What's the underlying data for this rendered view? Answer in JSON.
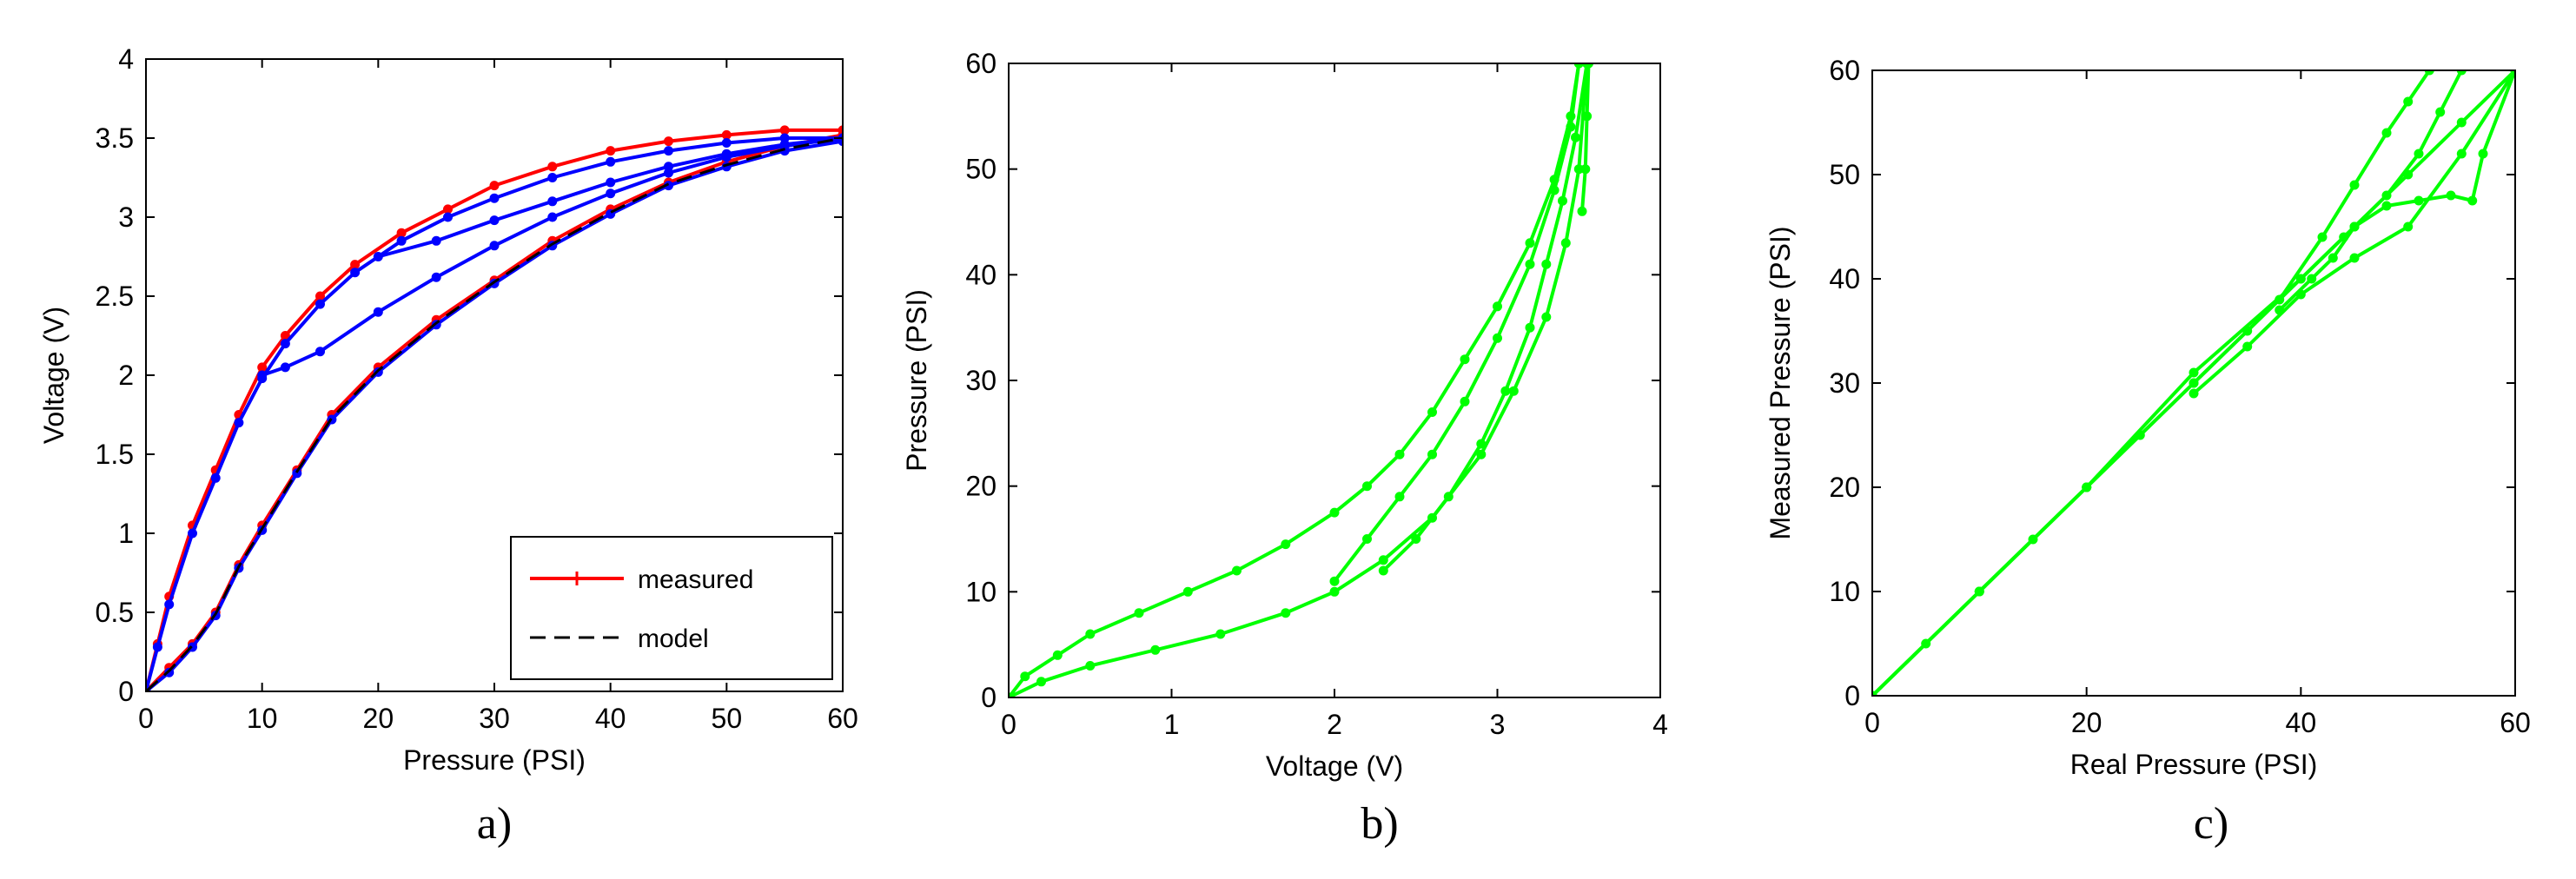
{
  "colors": {
    "measured": "#ff0000",
    "model": "#000000",
    "blue_series": "#0000ff",
    "green_series": "#00ff00"
  },
  "chart_data": [
    {
      "id": "a",
      "caption": "a)",
      "type": "line",
      "xlabel": "Pressure (PSI)",
      "ylabel": "Voltage (V)",
      "xlim": [
        0,
        60
      ],
      "ylim": [
        0,
        4
      ],
      "xticks": [
        0,
        10,
        20,
        30,
        40,
        50,
        60
      ],
      "yticks": [
        0,
        0.5,
        1,
        1.5,
        2,
        2.5,
        3,
        3.5,
        4
      ],
      "xtick_labels": [
        "0",
        "10",
        "20",
        "30",
        "40",
        "50",
        "60"
      ],
      "ytick_labels": [
        "0",
        "0.5",
        "1",
        "1.5",
        "2",
        "2.5",
        "3",
        "3.5",
        "4"
      ],
      "grid": false,
      "legend": {
        "position": "bottom-right",
        "entries": [
          "measured",
          "model"
        ]
      },
      "series": [
        {
          "name": "measured",
          "color": "#ff0000",
          "style": "solid-markers",
          "x": [
            0,
            1,
            2,
            4,
            6,
            8,
            10,
            12,
            15,
            18,
            22,
            26,
            30,
            35,
            40,
            45,
            50,
            55,
            60
          ],
          "y": [
            0,
            0.3,
            0.6,
            1.05,
            1.4,
            1.75,
            2.05,
            2.25,
            2.5,
            2.7,
            2.9,
            3.05,
            3.2,
            3.32,
            3.42,
            3.48,
            3.52,
            3.55,
            3.55
          ]
        },
        {
          "name": "measured",
          "color": "#ff0000",
          "style": "solid-markers",
          "x": [
            0,
            2,
            4,
            6,
            8,
            10,
            13,
            16,
            20,
            25,
            30,
            35,
            40,
            45,
            50,
            55,
            60
          ],
          "y": [
            0,
            0.15,
            0.3,
            0.5,
            0.8,
            1.05,
            1.4,
            1.75,
            2.05,
            2.35,
            2.6,
            2.85,
            3.05,
            3.22,
            3.35,
            3.45,
            3.52
          ]
        },
        {
          "name": "",
          "color": "#0000ff",
          "style": "solid-markers",
          "x": [
            0,
            1,
            2,
            4,
            6,
            8,
            10,
            12,
            15,
            18,
            22,
            26,
            30,
            35,
            40,
            45,
            50,
            55,
            60
          ],
          "y": [
            0,
            0.28,
            0.55,
            1.0,
            1.35,
            1.7,
            1.98,
            2.2,
            2.45,
            2.65,
            2.85,
            3.0,
            3.12,
            3.25,
            3.35,
            3.42,
            3.47,
            3.5,
            3.5
          ]
        },
        {
          "name": "",
          "color": "#0000ff",
          "style": "solid-markers",
          "x": [
            0,
            2,
            4,
            6,
            8,
            10,
            13,
            16,
            20,
            25,
            30,
            35,
            40,
            45,
            50,
            55,
            60
          ],
          "y": [
            0,
            0.12,
            0.28,
            0.48,
            0.78,
            1.02,
            1.38,
            1.72,
            2.02,
            2.32,
            2.58,
            2.82,
            3.02,
            3.2,
            3.32,
            3.42,
            3.48
          ]
        },
        {
          "name": "",
          "color": "#0000ff",
          "style": "solid-markers",
          "x": [
            10,
            12,
            15,
            20,
            25,
            30,
            35,
            40,
            45,
            50,
            55,
            60
          ],
          "y": [
            2.0,
            2.05,
            2.15,
            2.4,
            2.62,
            2.82,
            3.0,
            3.15,
            3.28,
            3.38,
            3.45,
            3.5
          ]
        },
        {
          "name": "",
          "color": "#0000ff",
          "style": "solid-markers",
          "x": [
            20,
            25,
            30,
            35,
            40,
            45,
            50,
            55,
            60
          ],
          "y": [
            2.75,
            2.85,
            2.98,
            3.1,
            3.22,
            3.32,
            3.4,
            3.46,
            3.5
          ]
        },
        {
          "name": "model",
          "color": "#000000",
          "style": "dashed",
          "x": [
            0,
            2,
            4,
            6,
            8,
            10,
            13,
            16,
            20,
            25,
            30,
            35,
            40,
            45,
            50,
            55,
            60
          ],
          "y": [
            0,
            0.13,
            0.29,
            0.49,
            0.79,
            1.03,
            1.39,
            1.73,
            2.03,
            2.33,
            2.59,
            2.83,
            3.03,
            3.21,
            3.33,
            3.43,
            3.5
          ]
        }
      ]
    },
    {
      "id": "b",
      "caption": "b)",
      "type": "line",
      "xlabel": "Voltage (V)",
      "ylabel": "Pressure (PSI)",
      "xlim": [
        0,
        4
      ],
      "ylim": [
        0,
        60
      ],
      "xticks": [
        0,
        1,
        2,
        3,
        4
      ],
      "yticks": [
        0,
        10,
        20,
        30,
        40,
        50,
        60
      ],
      "xtick_labels": [
        "0",
        "1",
        "2",
        "3",
        "4"
      ],
      "ytick_labels": [
        "0",
        "10",
        "20",
        "30",
        "40",
        "50",
        "60"
      ],
      "grid": false,
      "series": [
        {
          "name": "",
          "color": "#00ff00",
          "style": "solid-markers",
          "x": [
            0,
            0.1,
            0.3,
            0.5,
            0.8,
            1.1,
            1.4,
            1.7,
            2.0,
            2.2,
            2.4,
            2.6,
            2.8,
            3.0,
            3.2,
            3.35,
            3.45,
            3.5
          ],
          "y": [
            0,
            2,
            4,
            6,
            8,
            10,
            12,
            14.5,
            17.5,
            20,
            23,
            27,
            32,
            37,
            43,
            49,
            55,
            60
          ]
        },
        {
          "name": "",
          "color": "#00ff00",
          "style": "solid-markers",
          "x": [
            0,
            0.2,
            0.5,
            0.9,
            1.3,
            1.7,
            2.0,
            2.3,
            2.6,
            2.9,
            3.1,
            3.3,
            3.42,
            3.5,
            3.55
          ],
          "y": [
            0,
            1.5,
            3,
            4.5,
            6,
            8,
            10,
            13,
            17,
            23,
            29,
            36,
            43,
            50,
            60
          ]
        },
        {
          "name": "",
          "color": "#00ff00",
          "style": "solid-markers",
          "x": [
            2.0,
            2.2,
            2.4,
            2.6,
            2.8,
            3.0,
            3.2,
            3.35,
            3.45,
            3.5
          ],
          "y": [
            11,
            15,
            19,
            23,
            28,
            34,
            41,
            48,
            54,
            60
          ]
        },
        {
          "name": "",
          "color": "#00ff00",
          "style": "solid-markers",
          "x": [
            2.3,
            2.5,
            2.7,
            2.9,
            3.05,
            3.2,
            3.3,
            3.4,
            3.48,
            3.55
          ],
          "y": [
            12,
            15,
            19,
            24,
            29,
            35,
            41,
            47,
            53,
            60
          ]
        },
        {
          "name": "",
          "color": "#00ff00",
          "style": "solid-markers",
          "x": [
            3.52,
            3.54,
            3.55,
            3.56,
            3.55
          ],
          "y": [
            46,
            50,
            55,
            60,
            60
          ]
        }
      ]
    },
    {
      "id": "c",
      "caption": "c)",
      "type": "line",
      "xlabel": "Real Pressure (PSI)",
      "ylabel": "Measured Pressure (PSI)",
      "xlim": [
        0,
        60
      ],
      "ylim": [
        0,
        60
      ],
      "xticks": [
        0,
        20,
        40,
        60
      ],
      "yticks": [
        0,
        10,
        20,
        30,
        40,
        50,
        60
      ],
      "xtick_labels": [
        "0",
        "20",
        "40",
        "60"
      ],
      "ytick_labels": [
        "0",
        "10",
        "20",
        "30",
        "40",
        "50",
        "60"
      ],
      "grid": false,
      "series": [
        {
          "name": "",
          "color": "#00ff00",
          "style": "solid-markers",
          "x": [
            0,
            5,
            10,
            15,
            20,
            25,
            30,
            35,
            40,
            45,
            50,
            55,
            60
          ],
          "y": [
            0,
            5,
            10,
            15,
            20,
            25,
            30,
            35,
            40,
            45,
            50,
            55,
            60
          ]
        },
        {
          "name": "",
          "color": "#00ff00",
          "style": "solid-markers",
          "x": [
            0,
            10,
            20,
            30,
            38,
            42,
            45,
            48,
            50,
            52
          ],
          "y": [
            0,
            10,
            20,
            30,
            38,
            44,
            49,
            54,
            57,
            60
          ]
        },
        {
          "name": "",
          "color": "#00ff00",
          "style": "solid-markers",
          "x": [
            0,
            10,
            20,
            30,
            40,
            44,
            48,
            51,
            53,
            55
          ],
          "y": [
            0,
            10,
            20,
            31,
            40,
            44,
            48,
            52,
            56,
            60
          ]
        },
        {
          "name": "",
          "color": "#00ff00",
          "style": "solid-markers",
          "x": [
            38,
            41,
            43,
            45,
            48,
            51,
            54,
            56,
            57,
            60
          ],
          "y": [
            37,
            40,
            42,
            45,
            47,
            47.5,
            48,
            47.5,
            52,
            60
          ]
        },
        {
          "name": "",
          "color": "#00ff00",
          "style": "solid-markers",
          "x": [
            30,
            35,
            40,
            45,
            50,
            55,
            60
          ],
          "y": [
            29,
            33.5,
            38.5,
            42,
            45,
            52,
            60
          ]
        }
      ]
    }
  ]
}
